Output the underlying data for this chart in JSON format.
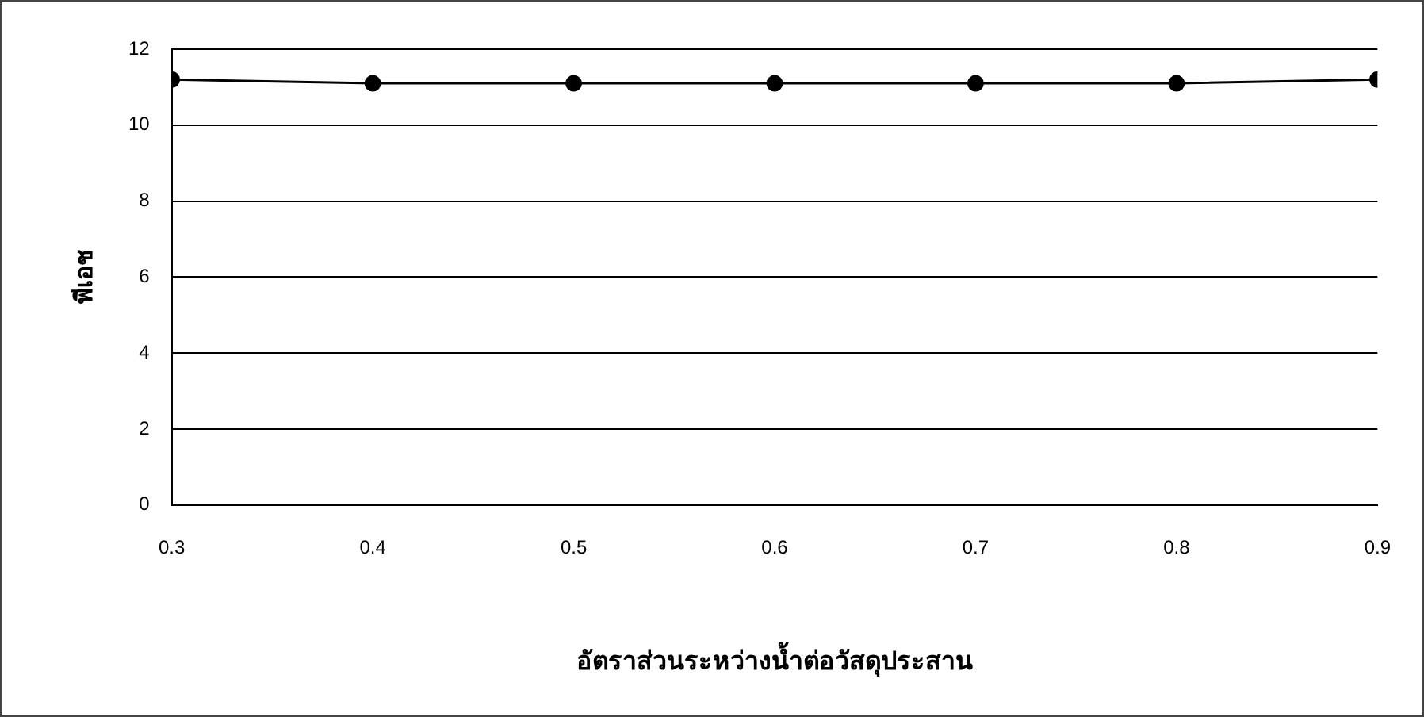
{
  "chart_data": {
    "type": "line",
    "xlabel": "อัตราส่วนระหว่างน้ำต่อวัสดุประสาน",
    "ylabel": "พีเอช",
    "x": [
      0.3,
      0.4,
      0.5,
      0.6,
      0.7,
      0.8,
      0.9
    ],
    "series": [
      {
        "color": "#000000",
        "values": [
          11.2,
          11.1,
          11.1,
          11.1,
          11.1,
          11.1,
          11.2
        ]
      }
    ],
    "xlim": [
      0.3,
      0.9
    ],
    "xticks": [
      0.3,
      0.4,
      0.5,
      0.6,
      0.7,
      0.8,
      0.9
    ],
    "ylim": [
      0,
      12
    ],
    "yticks": [
      0,
      2,
      4,
      6,
      8,
      10,
      12
    ],
    "grid": "y",
    "legend": false,
    "marker": "circle",
    "line_style": "solid"
  }
}
